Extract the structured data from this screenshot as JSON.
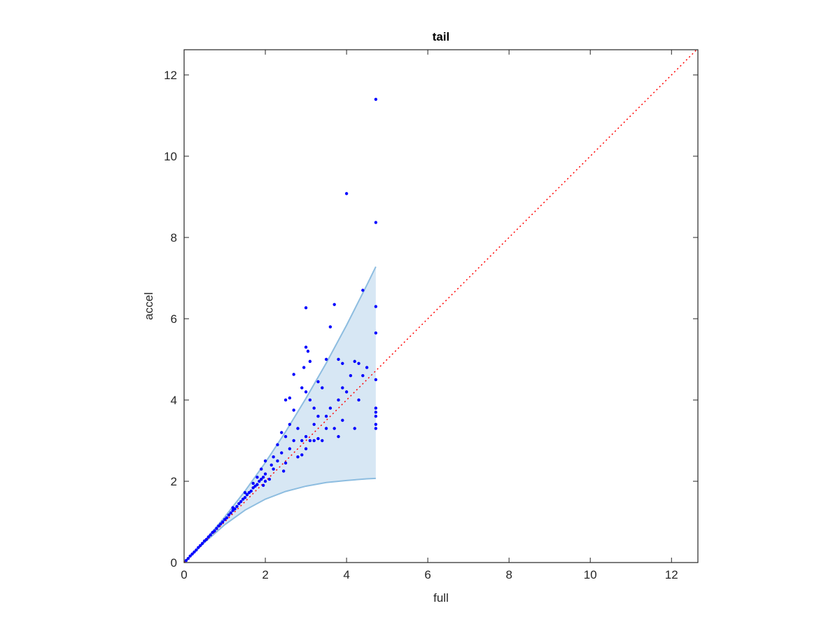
{
  "chart_data": {
    "type": "scatter",
    "title": "tail",
    "x_label": "full",
    "y_label": "accel",
    "xlim": [
      0,
      12.65
    ],
    "ylim": [
      0,
      12.62
    ],
    "xticks": [
      0,
      2,
      4,
      6,
      8,
      10,
      12
    ],
    "yticks": [
      0,
      2,
      4,
      6,
      8,
      10,
      12
    ],
    "band": {
      "color": "#d7e7f4",
      "edge_color": "#8dbde0",
      "x": [
        0,
        0.5,
        1,
        1.5,
        2,
        2.5,
        3,
        3.5,
        4,
        4.5,
        4.72
      ],
      "upper": [
        0,
        0.53,
        1.12,
        1.76,
        2.46,
        3.22,
        4.04,
        4.91,
        5.84,
        6.83,
        7.28
      ],
      "lower": [
        0,
        0.49,
        0.93,
        1.29,
        1.56,
        1.75,
        1.88,
        1.97,
        2.02,
        2.06,
        2.07
      ]
    },
    "reference_line": {
      "color": "#ff0000",
      "x": [
        0,
        12.65
      ],
      "y": [
        0,
        12.65
      ]
    },
    "points": {
      "color": "#0000ff",
      "x": [
        0.05,
        0.1,
        0.15,
        0.2,
        0.25,
        0.3,
        0.35,
        0.4,
        0.45,
        0.5,
        0.55,
        0.6,
        0.65,
        0.7,
        0.75,
        0.8,
        0.85,
        0.9,
        0.95,
        1.0,
        1.05,
        1.1,
        1.15,
        1.2,
        1.25,
        1.3,
        1.35,
        1.4,
        1.45,
        1.5,
        1.55,
        1.6,
        1.65,
        1.7,
        1.75,
        1.8,
        1.85,
        1.9,
        1.95,
        2.0,
        1.2,
        1.5,
        1.8,
        1.9,
        2.0,
        1.95,
        2.1,
        2.2,
        2.3,
        2.4,
        2.2,
        2.5,
        2.6,
        2.7,
        2.5,
        2.6,
        2.8,
        2.9,
        3.0,
        3.1,
        3.2,
        3.3,
        3.4,
        2.8,
        2.9,
        3.0,
        3.2,
        3.5,
        3.3,
        2.7,
        3.0,
        3.3,
        2.4,
        2.5,
        2.6,
        2.9,
        3.1,
        3.4,
        3.6,
        3.7,
        3.8,
        3.9,
        4.0,
        4.1,
        4.2,
        4.3,
        4.4,
        4.5,
        3.8,
        3.9,
        3.2,
        3.5,
        2.3,
        2.45,
        2.0,
        2.15,
        1.7,
        4.0,
        4.4,
        3.7,
        3.0,
        3.0,
        3.05,
        3.6,
        2.7,
        2.95,
        3.1,
        3.5,
        3.8,
        3.9,
        4.2,
        4.3,
        4.72,
        4.72,
        4.72,
        4.72,
        4.72,
        4.72,
        4.72,
        4.72,
        4.72,
        4.72
      ],
      "y": [
        0.05,
        0.1,
        0.16,
        0.21,
        0.26,
        0.31,
        0.37,
        0.42,
        0.47,
        0.53,
        0.57,
        0.63,
        0.68,
        0.74,
        0.78,
        0.84,
        0.9,
        0.95,
        1.0,
        1.06,
        1.1,
        1.17,
        1.22,
        1.28,
        1.32,
        1.38,
        1.45,
        1.5,
        1.56,
        1.6,
        1.67,
        1.72,
        1.76,
        1.84,
        1.88,
        1.92,
        2.0,
        2.05,
        2.1,
        2.18,
        1.35,
        1.72,
        2.1,
        2.3,
        2.5,
        1.9,
        2.05,
        2.3,
        2.5,
        2.7,
        2.6,
        2.45,
        2.8,
        3.0,
        3.1,
        3.4,
        3.3,
        3.0,
        3.1,
        3.0,
        3.0,
        3.05,
        3.0,
        2.6,
        2.65,
        2.8,
        3.4,
        3.6,
        3.6,
        3.75,
        4.2,
        4.45,
        3.2,
        4.0,
        4.05,
        4.3,
        4.0,
        4.3,
        3.8,
        3.3,
        3.1,
        3.5,
        4.2,
        4.6,
        3.3,
        4.0,
        4.6,
        4.8,
        4.0,
        4.3,
        3.8,
        3.3,
        2.9,
        2.25,
        2.0,
        2.4,
        1.95,
        9.08,
        6.7,
        6.35,
        6.27,
        5.3,
        5.2,
        5.8,
        4.63,
        4.8,
        4.95,
        5.0,
        5.0,
        4.9,
        4.95,
        4.9,
        11.4,
        8.37,
        6.3,
        5.65,
        4.5,
        3.8,
        3.7,
        3.6,
        3.4,
        3.3
      ]
    }
  }
}
